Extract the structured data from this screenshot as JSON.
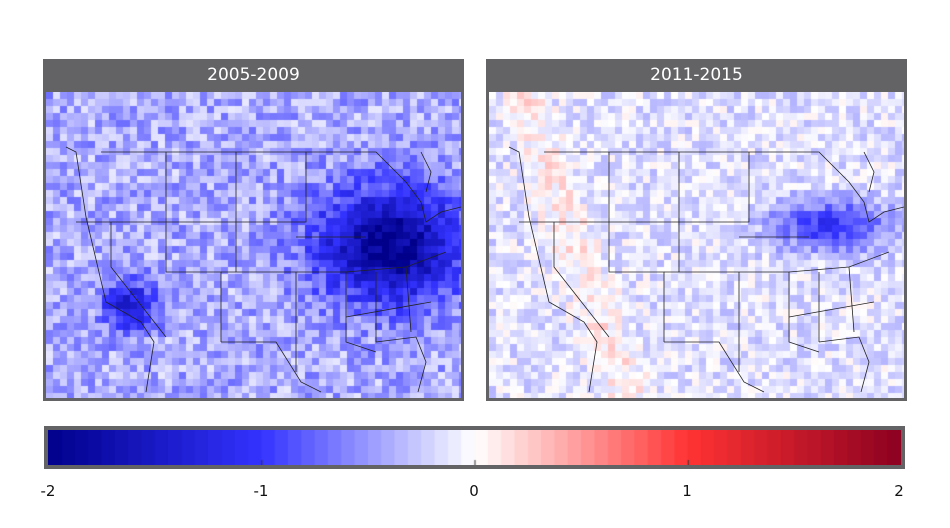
{
  "panels": [
    {
      "title": "2005-2009"
    },
    {
      "title": "2011-2015"
    }
  ],
  "colorbar": {
    "ticks": [
      "-2",
      "-1",
      "0",
      "1",
      "2"
    ],
    "range": [
      -2,
      2
    ],
    "colors": [
      "#00008b",
      "#3333ff",
      "#ffffff",
      "#ff3333",
      "#8b0020"
    ]
  }
}
